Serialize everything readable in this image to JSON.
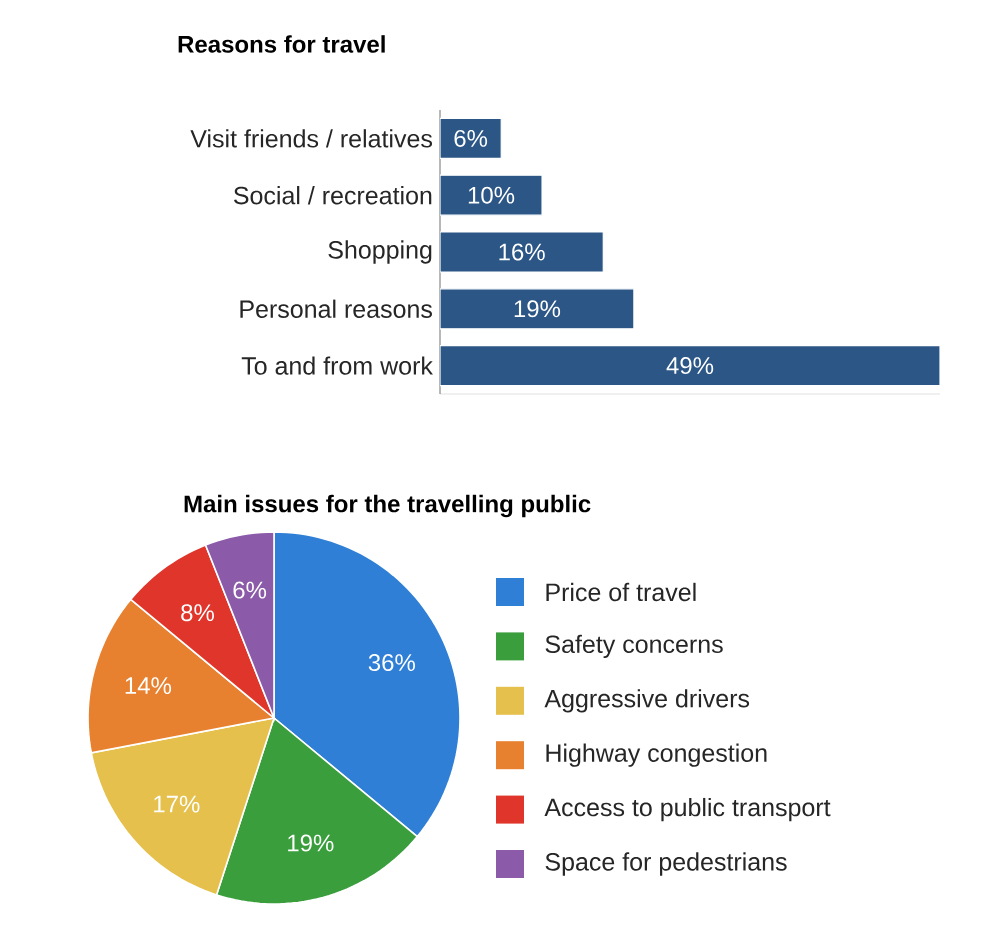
{
  "chart_data": [
    {
      "type": "bar",
      "orientation": "horizontal",
      "title": "Reasons for travel",
      "categories": [
        "Visit friends / relatives",
        "Social / recreation",
        "Shopping",
        "Personal reasons",
        "To and from work"
      ],
      "values": [
        6,
        10,
        16,
        19,
        49
      ],
      "color": "#2b5686",
      "value_labels": [
        "6%",
        "10%",
        "16%",
        "19%",
        "49%"
      ]
    },
    {
      "type": "pie",
      "title": "Main issues for the travelling public",
      "categories": [
        "Price of travel",
        "Safety concerns",
        "Aggressive drivers",
        "Highway congestion",
        "Access to public transport",
        "Space for pedestrians"
      ],
      "values": [
        36,
        19,
        17,
        14,
        8,
        6
      ],
      "colors": [
        "#2e7fd5",
        "#3a9e3c",
        "#e6c04c",
        "#e8812f",
        "#e0352b",
        "#8b5aa8"
      ],
      "value_labels": [
        "36%",
        "19%",
        "17%",
        "14%",
        "8%",
        "6%"
      ],
      "legend": "right"
    }
  ]
}
